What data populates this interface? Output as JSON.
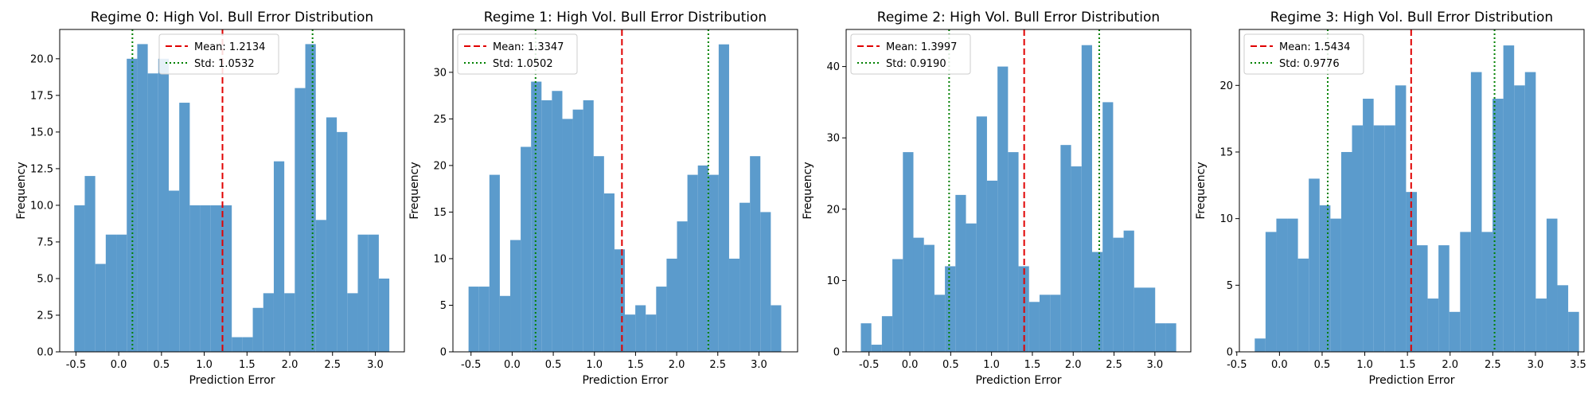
{
  "colors": {
    "bars": "#5b9bcc",
    "mean_line": "#e00000",
    "std_line": "#008000",
    "axes": "#000000"
  },
  "chart_data": [
    {
      "type": "bar",
      "title": "Regime 0: High Vol. Bull Error Distribution",
      "xlabel": "Prediction Error",
      "ylabel": "Frequency",
      "xlim": [
        -0.69,
        3.34
      ],
      "ylim": [
        0,
        22
      ],
      "xticks": [
        -0.5,
        0.0,
        0.5,
        1.0,
        1.5,
        2.0,
        2.5,
        3.0
      ],
      "xtick_labels": [
        "-0.5",
        "0.0",
        "0.5",
        "1.0",
        "1.5",
        "2.0",
        "2.5",
        "3.0"
      ],
      "yticks": [
        0,
        2.5,
        5.0,
        7.5,
        10.0,
        12.5,
        15.0,
        17.5,
        20.0
      ],
      "ytick_labels": [
        "0.0",
        "2.5",
        "5.0",
        "7.5",
        "10.0",
        "12.5",
        "15.0",
        "17.5",
        "20.0"
      ],
      "bin_start": -0.52,
      "bin_width": 0.1228,
      "counts": [
        10,
        12,
        6,
        8,
        8,
        20,
        21,
        19,
        20,
        11,
        17,
        10,
        10,
        10,
        10,
        1,
        1,
        3,
        4,
        13,
        4,
        18,
        21,
        9,
        16,
        15,
        4,
        8,
        8,
        5
      ],
      "mean": 1.2134,
      "std": 1.0532,
      "legend": [
        "Mean: 1.2134",
        "Std: 1.0532"
      ],
      "legend_position": "top-center"
    },
    {
      "type": "bar",
      "title": "Regime 1: High Vol. Bull Error Distribution",
      "xlabel": "Prediction Error",
      "ylabel": "Frequency",
      "xlim": [
        -0.72,
        3.47
      ],
      "ylim": [
        0,
        34.6
      ],
      "xticks": [
        -0.5,
        0.0,
        0.5,
        1.0,
        1.5,
        2.0,
        2.5,
        3.0
      ],
      "xtick_labels": [
        "-0.5",
        "0.0",
        "0.5",
        "1.0",
        "1.5",
        "2.0",
        "2.5",
        "3.0"
      ],
      "yticks": [
        0,
        5,
        10,
        15,
        20,
        25,
        30
      ],
      "ytick_labels": [
        "0",
        "5",
        "10",
        "15",
        "20",
        "25",
        "30"
      ],
      "bin_start": -0.53,
      "bin_width": 0.1267,
      "counts": [
        7,
        7,
        19,
        6,
        12,
        22,
        29,
        27,
        28,
        25,
        26,
        27,
        21,
        17,
        11,
        4,
        5,
        4,
        7,
        10,
        14,
        19,
        20,
        19,
        33,
        10,
        16,
        21,
        15,
        5
      ],
      "mean": 1.3347,
      "std": 1.0502,
      "legend": [
        "Mean: 1.3347",
        "Std: 1.0502"
      ],
      "legend_position": "top-left"
    },
    {
      "type": "bar",
      "title": "Regime 2: High Vol. Bull Error Distribution",
      "xlabel": "Prediction Error",
      "ylabel": "Frequency",
      "xlim": [
        -0.78,
        3.44
      ],
      "ylim": [
        0,
        45.2
      ],
      "xticks": [
        -0.5,
        0.0,
        0.5,
        1.0,
        1.5,
        2.0,
        2.5,
        3.0
      ],
      "xtick_labels": [
        "-0.5",
        "0.0",
        "0.5",
        "1.0",
        "1.5",
        "2.0",
        "2.5",
        "3.0"
      ],
      "yticks": [
        0,
        10,
        20,
        30,
        40
      ],
      "ytick_labels": [
        "0",
        "10",
        "20",
        "30",
        "40"
      ],
      "bin_start": -0.6,
      "bin_width": 0.1287,
      "counts": [
        4,
        1,
        5,
        13,
        28,
        16,
        15,
        8,
        12,
        22,
        18,
        33,
        24,
        40,
        28,
        12,
        7,
        8,
        8,
        29,
        26,
        43,
        14,
        35,
        16,
        17,
        9,
        9,
        4,
        4
      ],
      "mean": 1.3997,
      "std": 0.919,
      "legend": [
        "Mean: 1.3997",
        "Std: 0.9190"
      ],
      "legend_position": "top-left"
    },
    {
      "type": "bar",
      "title": "Regime 3: High Vol. Bull Error Distribution",
      "xlabel": "Prediction Error",
      "ylabel": "Frequency",
      "xlim": [
        -0.47,
        3.57
      ],
      "ylim": [
        0,
        24.2
      ],
      "xticks": [
        -0.5,
        0.0,
        0.5,
        1.0,
        1.5,
        2.0,
        2.5,
        3.0,
        3.5
      ],
      "xtick_labels": [
        "-0.5",
        "0.0",
        "0.5",
        "1.0",
        "1.5",
        "2.0",
        "2.5",
        "3.0",
        "3.5"
      ],
      "yticks": [
        0,
        5,
        10,
        15,
        20
      ],
      "ytick_labels": [
        "0",
        "5",
        "10",
        "15",
        "20"
      ],
      "bin_start": -0.29,
      "bin_width": 0.1267,
      "counts": [
        1,
        9,
        10,
        10,
        7,
        13,
        11,
        10,
        15,
        17,
        19,
        17,
        17,
        20,
        12,
        8,
        4,
        8,
        3,
        9,
        21,
        9,
        19,
        23,
        20,
        21,
        4,
        10,
        5,
        3
      ],
      "mean": 1.5434,
      "std": 0.9776,
      "legend": [
        "Mean: 1.5434",
        "Std: 0.9776"
      ],
      "legend_position": "top-left"
    }
  ]
}
